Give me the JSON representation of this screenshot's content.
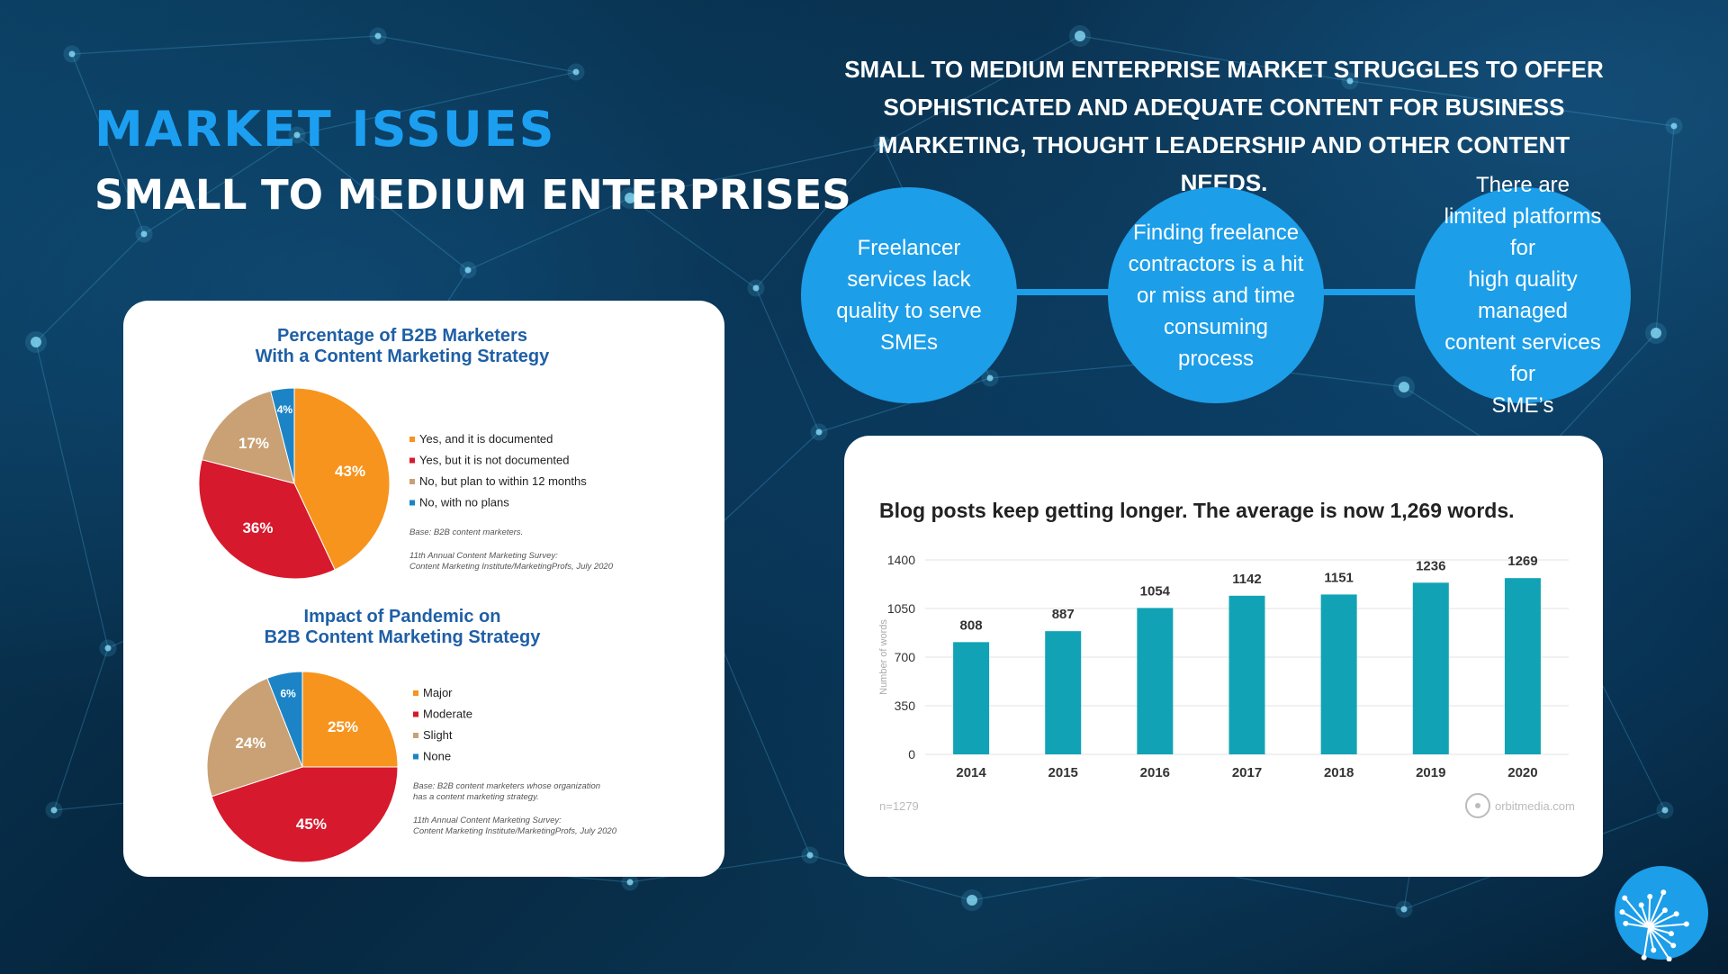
{
  "slide": {
    "title": "MARKET ISSUES",
    "subtitle": "SMALL TO MEDIUM ENTERPRISES",
    "headline": "SMALL TO MEDIUM ENTERPRISE MARKET STRUGGLES TO OFFER SOPHISTICATED AND ADEQUATE CONTENT FOR BUSINESS MARKETING, THOUGHT LEADERSHIP AND OTHER CONTENT NEEDS.",
    "bubbles": [
      "Freelancer\nservices lack\nquality to serve\nSMEs",
      "Finding freelance\ncontractors is a hit\nor miss and time\nconsuming\nprocess",
      "There are\nlimited platforms for\nhigh quality managed\ncontent services for\nSME’s"
    ]
  },
  "colors": {
    "accent": "#1c9ff0",
    "bubble": "#1c9ee9",
    "teal_bar": "#11a3b5",
    "orange": "#f7941d",
    "red": "#d7192d",
    "tan": "#c9a174",
    "blue": "#1c84c6",
    "pie_title": "#1f5fa6"
  },
  "chart_data": [
    {
      "type": "pie",
      "title": "Percentage of B2B Marketers\nWith a Content Marketing Strategy",
      "slices": [
        {
          "label": "Yes, and it is documented",
          "value": 43,
          "display": "43%",
          "color": "#f7941d"
        },
        {
          "label": "Yes, but it is not documented",
          "value": 36,
          "display": "36%",
          "color": "#d7192d"
        },
        {
          "label": "No, but plan to within 12 months",
          "value": 17,
          "display": "17%",
          "color": "#c9a174"
        },
        {
          "label": "No, with no plans",
          "value": 4,
          "display": "4%",
          "color": "#1c84c6"
        }
      ],
      "base_note": "Base: B2B content marketers.",
      "source": "11th Annual Content Marketing Survey:\nContent Marketing Institute/MarketingProfs, July 2020"
    },
    {
      "type": "pie",
      "title": "Impact of Pandemic on\nB2B Content Marketing Strategy",
      "slices": [
        {
          "label": "Major",
          "value": 25,
          "display": "25%",
          "color": "#f7941d"
        },
        {
          "label": "Moderate",
          "value": 45,
          "display": "45%",
          "color": "#d7192d"
        },
        {
          "label": "Slight",
          "value": 24,
          "display": "24%",
          "color": "#c9a174"
        },
        {
          "label": "None",
          "value": 6,
          "display": "6%",
          "color": "#1c84c6"
        }
      ],
      "base_note": "Base: B2B content marketers whose organization\nhas a content marketing strategy.",
      "source": "11th Annual Content Marketing Survey:\nContent Marketing Institute/MarketingProfs, July 2020"
    },
    {
      "type": "bar",
      "title": "Blog posts keep getting longer. The average is now 1,269 words.",
      "categories": [
        "2014",
        "2015",
        "2016",
        "2017",
        "2018",
        "2019",
        "2020"
      ],
      "values": [
        808,
        887,
        1054,
        1142,
        1151,
        1236,
        1269
      ],
      "ylabel": "Number of words",
      "yticks": [
        0,
        350,
        700,
        1050,
        1400
      ],
      "ylim": [
        0,
        1400
      ],
      "grid": true,
      "note": "n=1279",
      "source": "orbitmedia.com"
    }
  ]
}
